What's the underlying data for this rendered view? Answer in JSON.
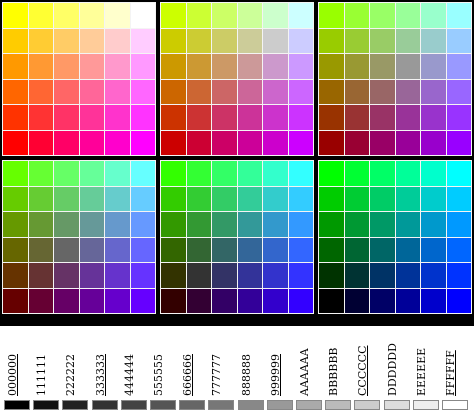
{
  "gray_levels": [
    {
      "label": "000000",
      "color": "#000000",
      "underlined": true
    },
    {
      "label": "111111",
      "color": "#111111",
      "underlined": false
    },
    {
      "label": "222222",
      "color": "#222222",
      "underlined": false
    },
    {
      "label": "333333",
      "color": "#333333",
      "underlined": true
    },
    {
      "label": "444444",
      "color": "#444444",
      "underlined": false
    },
    {
      "label": "555555",
      "color": "#555555",
      "underlined": false
    },
    {
      "label": "666666",
      "color": "#666666",
      "underlined": true
    },
    {
      "label": "777777",
      "color": "#777777",
      "underlined": false
    },
    {
      "label": "888888",
      "color": "#888888",
      "underlined": false
    },
    {
      "label": "999999",
      "color": "#999999",
      "underlined": true
    },
    {
      "label": "AAAAAA",
      "color": "#AAAAAA",
      "underlined": false
    },
    {
      "label": "BBBBBB",
      "color": "#BBBBBB",
      "underlined": false
    },
    {
      "label": "CCCCCC",
      "color": "#CCCCCC",
      "underlined": true
    },
    {
      "label": "DDDDDD",
      "color": "#DDDDDD",
      "underlined": false
    },
    {
      "label": "EEEEEE",
      "color": "#EEEEEE",
      "underlined": false
    },
    {
      "label": "FFFFFF",
      "color": "#FFFFFF",
      "underlined": true
    }
  ],
  "palette": {
    "blue_levels": [
      "00",
      "33",
      "66",
      "99",
      "CC",
      "FF"
    ],
    "green_levels": [
      "FF",
      "CC",
      "99",
      "66",
      "33",
      "00"
    ],
    "red_levels_per_block": [
      "FF",
      "CC",
      "99",
      "66",
      "33",
      "00"
    ]
  }
}
